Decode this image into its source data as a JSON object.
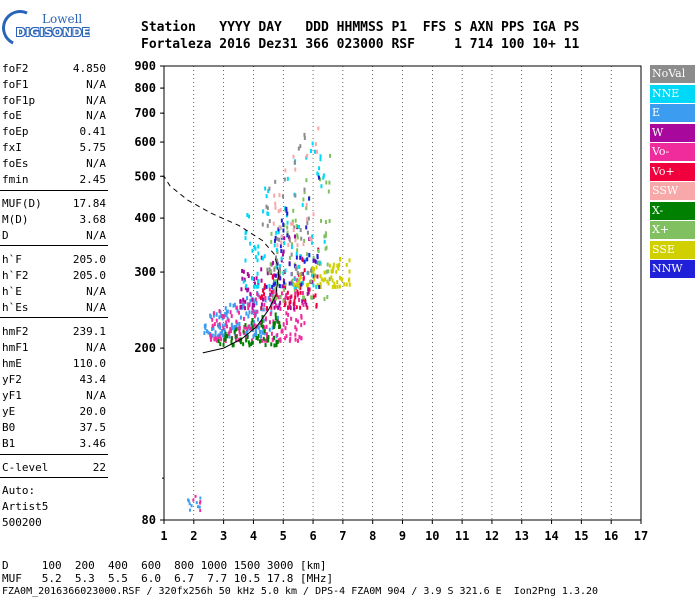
{
  "logo": {
    "line1": "Lowell",
    "line2": "DIGISONDE"
  },
  "header": {
    "row1": "Station   YYYY DAY   DDD HHMMSS P1  FFS S AXN PPS IGA PS",
    "row2": "Fortaleza 2016 Dez31 366 023000 RSF     1 714 100 10+ 11"
  },
  "params": [
    {
      "name": "foF2",
      "value": "4.850"
    },
    {
      "name": "foF1",
      "value": "N/A"
    },
    {
      "name": "foF1p",
      "value": "N/A"
    },
    {
      "name": "foE",
      "value": "N/A"
    },
    {
      "name": "foEp",
      "value": "0.41"
    },
    {
      "name": "fxI",
      "value": "5.75"
    },
    {
      "name": "foEs",
      "value": "N/A"
    },
    {
      "name": "fmin",
      "value": "2.45"
    },
    {
      "name": "MUF(D)",
      "value": "17.84"
    },
    {
      "name": "M(D)",
      "value": "3.68"
    },
    {
      "name": "D",
      "value": "N/A"
    },
    {
      "name": "h`F",
      "value": "205.0"
    },
    {
      "name": "h`F2",
      "value": "205.0"
    },
    {
      "name": "h`E",
      "value": "N/A"
    },
    {
      "name": "h`Es",
      "value": "N/A"
    },
    {
      "name": "hmF2",
      "value": "239.1"
    },
    {
      "name": "hmF1",
      "value": "N/A"
    },
    {
      "name": "hmE",
      "value": "110.0"
    },
    {
      "name": "yF2",
      "value": "43.4"
    },
    {
      "name": "yF1",
      "value": "N/A"
    },
    {
      "name": "yE",
      "value": "20.0"
    },
    {
      "name": "B0",
      "value": "37.5"
    },
    {
      "name": "B1",
      "value": "3.46"
    },
    {
      "name": "C-level",
      "value": "22"
    }
  ],
  "auto": {
    "line1": "Auto:",
    "line2": "Artist5",
    "line3": "500200"
  },
  "legend": [
    {
      "label": "NoVal",
      "color": "#8c8c8c",
      "text": "#ffffff"
    },
    {
      "label": "NNE",
      "color": "#00d8f8",
      "text": "#ffffff"
    },
    {
      "label": "E",
      "color": "#3c9cf0",
      "text": "#ffffff"
    },
    {
      "label": "W",
      "color": "#a8089c",
      "text": "#ffffff"
    },
    {
      "label": "Vo-",
      "color": "#f02c9c",
      "text": "#ffffff"
    },
    {
      "label": "Vo+",
      "color": "#f0003c",
      "text": "#ffffff"
    },
    {
      "label": "SSW",
      "color": "#f8a8a8",
      "text": "#ffffff"
    },
    {
      "label": "X-",
      "color": "#008000",
      "text": "#ffffff"
    },
    {
      "label": "X+",
      "color": "#80c060",
      "text": "#ffffff"
    },
    {
      "label": "SSE",
      "color": "#d0d000",
      "text": "#ffffff"
    },
    {
      "label": "NNW",
      "color": "#2020d8",
      "text": "#ffffff"
    }
  ],
  "chart_data": {
    "type": "scatter",
    "xlabel": "",
    "ylabel": "",
    "xlim": [
      1,
      17
    ],
    "ylim": [
      80,
      900
    ],
    "y_scale": "log",
    "x_ticks": [
      1,
      2,
      3,
      4,
      5,
      6,
      7,
      8,
      9,
      10,
      11,
      12,
      13,
      14,
      15,
      16,
      17
    ],
    "y_ticks": [
      80,
      200,
      300,
      400,
      500,
      600,
      700,
      800,
      900
    ],
    "grid": "vertical dotted",
    "foF2": 4.85,
    "profile_curve": [
      [
        2.3,
        195
      ],
      [
        3.0,
        200
      ],
      [
        3.6,
        210
      ],
      [
        4.1,
        224
      ],
      [
        4.5,
        245
      ],
      [
        4.75,
        265
      ],
      [
        4.85,
        300
      ],
      [
        4.7,
        330
      ],
      [
        4.3,
        355
      ],
      [
        3.5,
        385
      ],
      [
        2.6,
        410
      ],
      [
        1.8,
        440
      ],
      [
        1.2,
        475
      ],
      [
        1.0,
        500
      ]
    ],
    "clusters": [
      {
        "color": "#3c9cf0",
        "x": [
          2.3,
          4.8
        ],
        "y": [
          215,
          285
        ],
        "n": 140
      },
      {
        "color": "#f02c9c",
        "x": [
          2.5,
          5.7
        ],
        "y": [
          210,
          300
        ],
        "n": 160
      },
      {
        "color": "#008000",
        "x": [
          2.8,
          4.9
        ],
        "y": [
          205,
          250
        ],
        "n": 60
      },
      {
        "color": "#a8089c",
        "x": [
          3.5,
          6.0
        ],
        "y": [
          250,
          420
        ],
        "n": 80
      },
      {
        "color": "#f0003c",
        "x": [
          4.2,
          6.2
        ],
        "y": [
          250,
          350
        ],
        "n": 60
      },
      {
        "color": "#80c060",
        "x": [
          4.5,
          6.6
        ],
        "y": [
          260,
          600
        ],
        "n": 80
      },
      {
        "color": "#00d8f8",
        "x": [
          3.6,
          6.4
        ],
        "y": [
          280,
          650
        ],
        "n": 90
      },
      {
        "color": "#d0d000",
        "x": [
          5.3,
          7.2
        ],
        "y": [
          280,
          340
        ],
        "n": 60
      },
      {
        "color": "#2020d8",
        "x": [
          4.4,
          6.2
        ],
        "y": [
          280,
          560
        ],
        "n": 40
      },
      {
        "color": "#8c8c8c",
        "x": [
          4.2,
          6.0
        ],
        "y": [
          300,
          680
        ],
        "n": 40
      },
      {
        "color": "#f8a8a8",
        "x": [
          4.6,
          6.2
        ],
        "y": [
          350,
          700
        ],
        "n": 30
      }
    ],
    "low_cluster": {
      "x": [
        1.7,
        2.2
      ],
      "y": [
        84,
        92
      ]
    }
  },
  "footer": {
    "d_row": "D     100  200  400  600  800 1000 1500 3000 [km]",
    "muf_row": "MUF   5.2  5.3  5.5  6.0  6.7  7.7 10.5 17.8 [MHz]",
    "info": "FZA0M_2016366023000.RSF / 320fx256h 50 kHz 5.0 km / DPS-4 FZA0M 904 / 3.9 S 321.6 E  Ion2Png 1.3.20"
  }
}
